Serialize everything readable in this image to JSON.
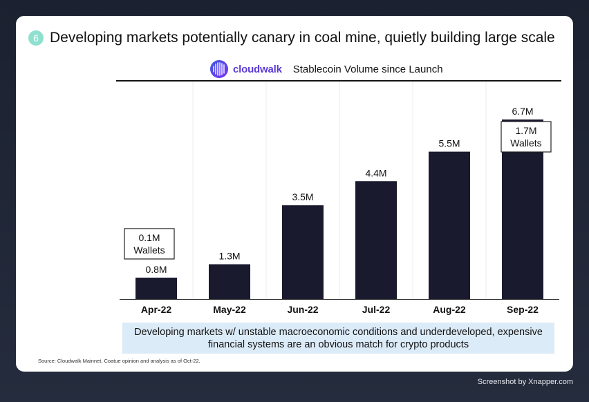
{
  "slide": {
    "number": "6",
    "title": "Developing markets potentially canary in coal mine, quietly building large scale"
  },
  "logo": {
    "text": "cloudwalk"
  },
  "callout": {
    "line1": "Developing markets w/ unstable macroeconomic conditions and underdeveloped, expensive",
    "line2": "financial systems are an obvious match for crypto products"
  },
  "source": "Source: Cloudwalk Mainnet, Coatue opinion and analysis as of Oct-22.",
  "watermark": "Screenshot by Xnapper.com",
  "colors": {
    "bar": "#1a1a2e",
    "accent": "#5b3bd6",
    "badge": "#8fe0cf",
    "callout_bg": "#dcebf8"
  },
  "chart_data": {
    "type": "bar",
    "title": "Stablecoin Volume since Launch",
    "categories": [
      "Apr-22",
      "May-22",
      "Jun-22",
      "Jul-22",
      "Aug-22",
      "Sep-22"
    ],
    "values": [
      0.8,
      1.3,
      3.5,
      4.4,
      5.5,
      6.7
    ],
    "value_labels": [
      "0.8M",
      "1.3M",
      "3.5M",
      "4.4M",
      "5.5M",
      "6.7M"
    ],
    "unit": "M",
    "xlabel": "",
    "ylabel": "",
    "ylim": [
      0,
      6.7
    ],
    "annotations": [
      {
        "category": "Apr-22",
        "line1": "0.1M",
        "line2": "Wallets"
      },
      {
        "category": "Sep-22",
        "line1": "1.7M",
        "line2": "Wallets"
      }
    ]
  }
}
